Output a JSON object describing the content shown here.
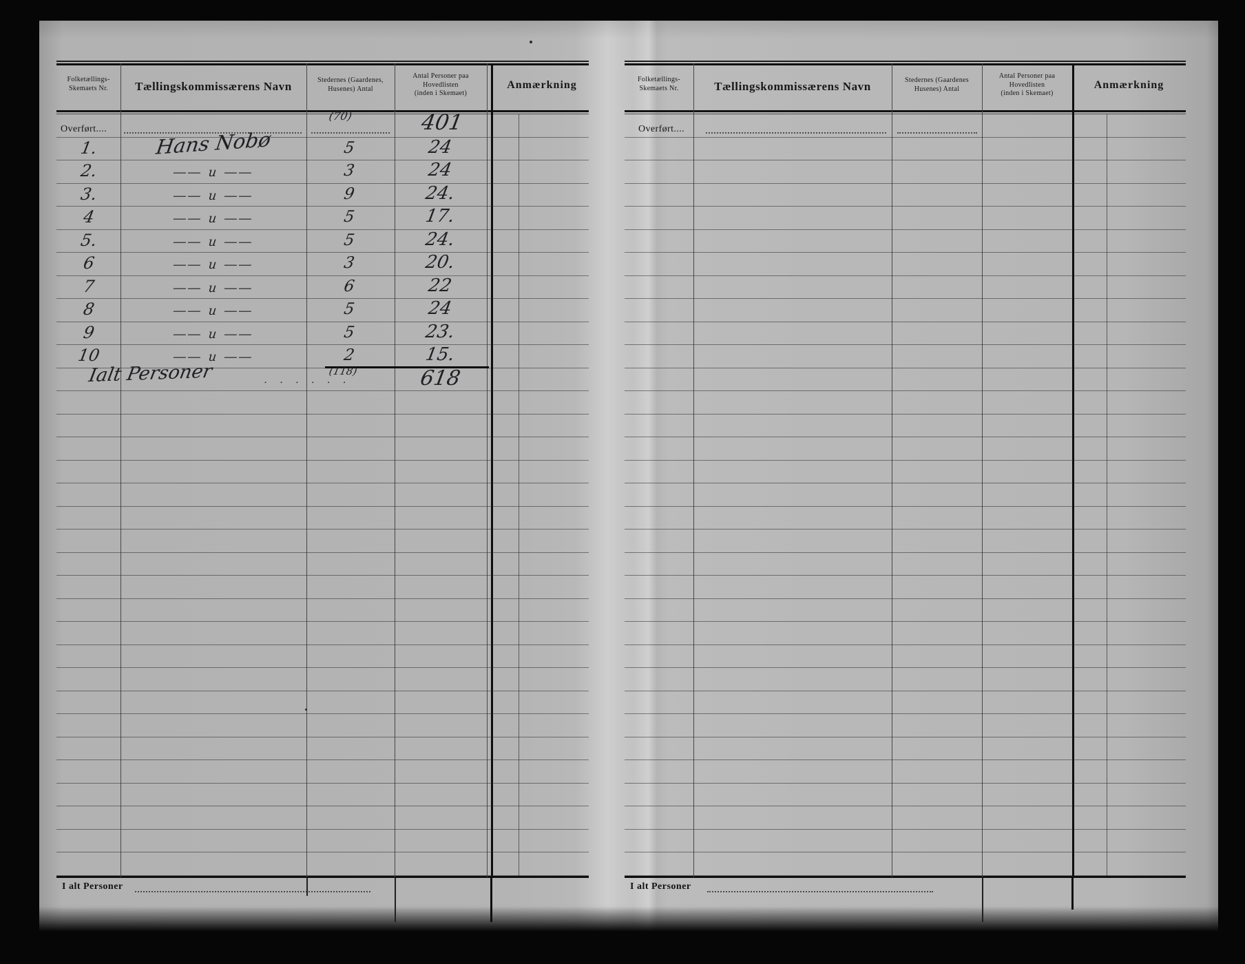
{
  "document": {
    "left_page": {
      "header": {
        "col_nr_line1": "Folketællings-",
        "col_nr_line2": "Skemaets Nr.",
        "col_navn": "Tællingskommissærens Navn",
        "col_steder_line1": "Stedernes (Gaardenes,",
        "col_steder_line2": "Husenes) Antal",
        "col_personer_line1": "Antal Personer paa",
        "col_personer_line2": "Hovedlisten",
        "col_personer_line3": "(inden i Skemaet)",
        "col_anm": "Anmærkning"
      },
      "overfort_row": {
        "label": "Overført....",
        "steder_note": "(70)",
        "personer": "401"
      },
      "rows": [
        {
          "nr": "1.",
          "navn": "Hans Nobø",
          "steder": "5",
          "personer": "24"
        },
        {
          "nr": "2.",
          "navn": "―― u ――",
          "steder": "3",
          "personer": "24"
        },
        {
          "nr": "3.",
          "navn": "―― u ――",
          "steder": "9",
          "personer": "24."
        },
        {
          "nr": "4",
          "navn": "―― u ――",
          "steder": "5",
          "personer": "17."
        },
        {
          "nr": "5.",
          "navn": "―― u ――",
          "steder": "5",
          "personer": "24."
        },
        {
          "nr": "6",
          "navn": "―― u ――",
          "steder": "3",
          "personer": "20."
        },
        {
          "nr": "7",
          "navn": "―― u ――",
          "steder": "6",
          "personer": "22"
        },
        {
          "nr": "8",
          "navn": "―― u ――",
          "steder": "5",
          "personer": "24"
        },
        {
          "nr": "9",
          "navn": "―― u ――",
          "steder": "5",
          "personer": "23."
        },
        {
          "nr": "10",
          "navn": "―― u ――",
          "steder": "2",
          "personer": "15."
        }
      ],
      "sum_row": {
        "label": "Ialt Personer",
        "leader": ". .  . .  . .",
        "steder": "(118)",
        "personer": "618"
      },
      "footer": {
        "label": "I alt Personer"
      }
    },
    "right_page": {
      "header": {
        "col_nr_line1": "Folketællings-",
        "col_nr_line2": "Skemaets Nr.",
        "col_navn": "Tællingskommissærens Navn",
        "col_steder_line1": "Stedernes (Gaardenes",
        "col_steder_line2": "Husenes) Antal",
        "col_personer_line1": "Antal Personer paa",
        "col_personer_line2": "Hovedlisten",
        "col_personer_line3": "(inden i Skemaet)",
        "col_anm": "Anmærkning"
      },
      "overfort_row": {
        "label": "Overført...."
      },
      "footer": {
        "label": "I alt Personer"
      }
    }
  }
}
